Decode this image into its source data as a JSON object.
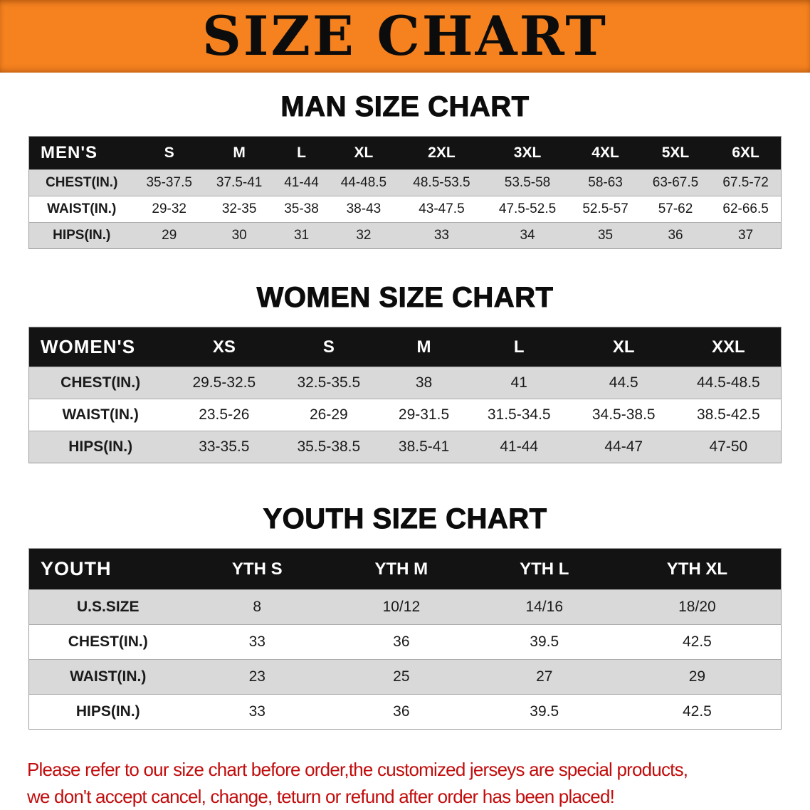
{
  "banner": {
    "title": "SIZE CHART"
  },
  "sections": [
    {
      "heading": "MAN SIZE CHART",
      "table": {
        "header": [
          "MEN'S",
          "S",
          "M",
          "L",
          "XL",
          "2XL",
          "3XL",
          "4XL",
          "5XL",
          "6XL"
        ],
        "rows": [
          {
            "label": "CHEST(IN.)",
            "values": [
              "35-37.5",
              "37.5-41",
              "41-44",
              "44-48.5",
              "48.5-53.5",
              "53.5-58",
              "58-63",
              "63-67.5",
              "67.5-72"
            ]
          },
          {
            "label": "WAIST(IN.)",
            "values": [
              "29-32",
              "32-35",
              "35-38",
              "38-43",
              "43-47.5",
              "47.5-52.5",
              "52.5-57",
              "57-62",
              "62-66.5"
            ]
          },
          {
            "label": "HIPS(IN.)",
            "values": [
              "29",
              "30",
              "31",
              "32",
              "33",
              "34",
              "35",
              "36",
              "37"
            ]
          }
        ]
      }
    },
    {
      "heading": "WOMEN SIZE CHART",
      "table": {
        "header": [
          "WOMEN'S",
          "XS",
          "S",
          "M",
          "L",
          "XL",
          "XXL"
        ],
        "rows": [
          {
            "label": "CHEST(IN.)",
            "values": [
              "29.5-32.5",
              "32.5-35.5",
              "38",
              "41",
              "44.5",
              "44.5-48.5"
            ]
          },
          {
            "label": "WAIST(IN.)",
            "values": [
              "23.5-26",
              "26-29",
              "29-31.5",
              "31.5-34.5",
              "34.5-38.5",
              "38.5-42.5"
            ]
          },
          {
            "label": "HIPS(IN.)",
            "values": [
              "33-35.5",
              "35.5-38.5",
              "38.5-41",
              "41-44",
              "44-47",
              "47-50"
            ]
          }
        ]
      }
    },
    {
      "heading": "YOUTH SIZE CHART",
      "table": {
        "header": [
          "YOUTH",
          "YTH S",
          "YTH M",
          "YTH L",
          "YTH XL"
        ],
        "rows": [
          {
            "label": "U.S.SIZE",
            "values": [
              "8",
              "10/12",
              "14/16",
              "18/20"
            ]
          },
          {
            "label": "CHEST(IN.)",
            "values": [
              "33",
              "36",
              "39.5",
              "42.5"
            ]
          },
          {
            "label": "WAIST(IN.)",
            "values": [
              "23",
              "25",
              "27",
              "29"
            ]
          },
          {
            "label": "HIPS(IN.)",
            "values": [
              "33",
              "36",
              "39.5",
              "42.5"
            ]
          }
        ]
      }
    }
  ],
  "notice": {
    "line1": "Please refer to our size chart before order,the customized jerseys are special products,",
    "line2": "we don't accept cancel, change, teturn or refund after order has been placed!"
  },
  "colors": {
    "banner_orange": "#F5821F",
    "table_header_black": "#131313",
    "row_gray": "#D9D9D9",
    "notice_red": "#C20D0D"
  }
}
